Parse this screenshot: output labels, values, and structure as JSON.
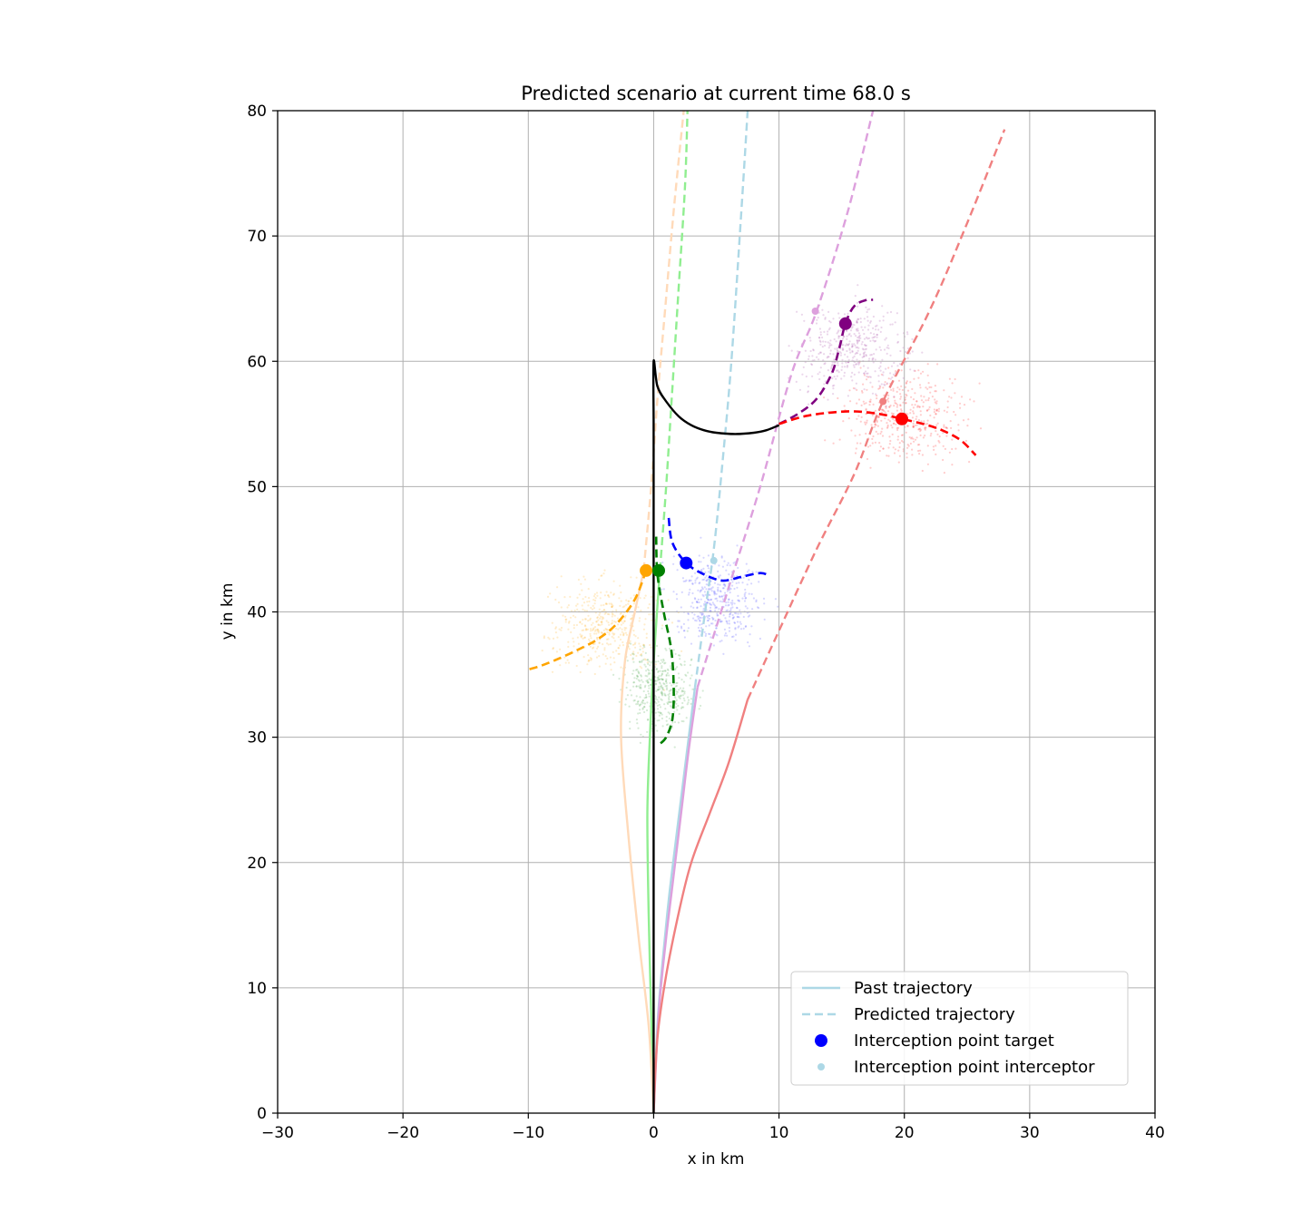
{
  "chart_data": {
    "type": "line",
    "title": "Predicted scenario at current time 68.0 s",
    "xlabel": "x in km",
    "ylabel": "y in km",
    "xlim": [
      -30,
      40
    ],
    "ylim": [
      0,
      80
    ],
    "xticks": [
      -30,
      -20,
      -10,
      0,
      10,
      20,
      30,
      40
    ],
    "yticks": [
      0,
      10,
      20,
      30,
      40,
      50,
      60,
      70,
      80
    ],
    "xtick_labels": [
      "−30",
      "−20",
      "−10",
      "0",
      "10",
      "20",
      "30",
      "40"
    ],
    "ytick_labels": [
      "0",
      "10",
      "20",
      "30",
      "40",
      "50",
      "60",
      "70",
      "80"
    ],
    "grid": true,
    "legend": {
      "position": "lower-right",
      "entries": [
        {
          "label": "Past trajectory",
          "style": "solid-line",
          "color": "#add8e6"
        },
        {
          "label": "Predicted trajectory",
          "style": "dashed-line",
          "color": "#add8e6"
        },
        {
          "label": "Interception point target",
          "style": "large-dot",
          "color": "#0000ff"
        },
        {
          "label": "Interception point interceptor",
          "style": "small-dot",
          "color": "#add8e6"
        }
      ]
    },
    "ownship_path": {
      "name": "Own path",
      "color": "#000000",
      "points": [
        [
          0,
          0
        ],
        [
          0,
          10
        ],
        [
          0,
          20
        ],
        [
          0,
          30
        ],
        [
          0,
          40
        ],
        [
          0,
          47
        ],
        [
          0,
          50
        ],
        [
          0,
          55
        ],
        [
          0,
          60
        ],
        [
          0.3,
          58
        ],
        [
          1,
          56.8
        ],
        [
          2,
          55.6
        ],
        [
          3,
          54.9
        ],
        [
          4,
          54.5
        ],
        [
          5,
          54.3
        ],
        [
          6.5,
          54.2
        ],
        [
          8,
          54.3
        ],
        [
          9,
          54.5
        ],
        [
          10,
          54.9
        ]
      ]
    },
    "series": [
      {
        "name": "light blue interceptor",
        "color": "#add8e6",
        "role": "interceptor",
        "past": [
          [
            0,
            0
          ],
          [
            0.3,
            7
          ],
          [
            0.7,
            12
          ],
          [
            1.2,
            17
          ],
          [
            1.8,
            22
          ],
          [
            2.3,
            26
          ],
          [
            2.8,
            30
          ],
          [
            3.3,
            34
          ]
        ],
        "predicted": [
          [
            3.3,
            34
          ],
          [
            4.1,
            40
          ],
          [
            4.8,
            45
          ],
          [
            5.5,
            52
          ],
          [
            6.2,
            60
          ],
          [
            7.0,
            72
          ],
          [
            7.5,
            80
          ]
        ],
        "interception_point": [
          4.8,
          44.1
        ]
      },
      {
        "name": "plum interceptor",
        "color": "#dda0dd",
        "role": "interceptor",
        "past": [
          [
            0,
            0
          ],
          [
            0.4,
            8
          ],
          [
            1.0,
            14
          ],
          [
            1.6,
            19
          ],
          [
            2.2,
            24
          ],
          [
            2.8,
            29
          ],
          [
            3.5,
            34
          ]
        ],
        "predicted": [
          [
            3.5,
            34
          ],
          [
            6,
            42
          ],
          [
            8.5,
            50
          ],
          [
            11,
            59
          ],
          [
            13,
            64
          ],
          [
            15.5,
            72
          ],
          [
            17.5,
            80
          ]
        ],
        "interception_point": [
          12.9,
          64.0
        ]
      },
      {
        "name": "light coral interceptor",
        "color": "#f08080",
        "role": "interceptor",
        "past": [
          [
            0,
            0
          ],
          [
            0.3,
            6
          ],
          [
            1,
            11
          ],
          [
            2,
            16
          ],
          [
            3,
            20
          ],
          [
            4.5,
            24
          ],
          [
            6,
            28
          ],
          [
            7.5,
            33
          ]
        ],
        "predicted": [
          [
            7.5,
            33
          ],
          [
            10,
            38.5
          ],
          [
            13,
            45
          ],
          [
            16,
            51
          ],
          [
            18.3,
            56.8
          ],
          [
            22,
            64
          ],
          [
            25,
            71
          ],
          [
            28,
            78.5
          ]
        ],
        "interception_point": [
          18.3,
          56.8
        ]
      },
      {
        "name": "light green interceptor",
        "color": "#90ee90",
        "role": "interceptor",
        "past": [
          [
            0,
            0
          ],
          [
            -0.2,
            8
          ],
          [
            -0.4,
            16
          ],
          [
            -0.5,
            24
          ],
          [
            -0.3,
            30
          ],
          [
            0,
            36
          ],
          [
            0.5,
            43.3
          ]
        ],
        "predicted": [
          [
            0.5,
            43.3
          ],
          [
            1.0,
            50
          ],
          [
            1.5,
            58
          ],
          [
            2.0,
            66
          ],
          [
            2.5,
            74
          ],
          [
            2.7,
            80
          ]
        ],
        "interception_point": [
          0.5,
          43.3
        ]
      },
      {
        "name": "peach interceptor",
        "color": "#ffdab9",
        "role": "interceptor",
        "past": [
          [
            0,
            0
          ],
          [
            -0.4,
            7
          ],
          [
            -1.2,
            14
          ],
          [
            -2.0,
            22
          ],
          [
            -2.6,
            30
          ],
          [
            -2.3,
            36
          ],
          [
            -1.5,
            40
          ],
          [
            -0.8,
            43.3
          ]
        ],
        "predicted": [
          [
            -0.8,
            43.3
          ],
          [
            -0.2,
            50
          ],
          [
            0.3,
            57
          ],
          [
            0.9,
            64
          ],
          [
            1.6,
            72
          ],
          [
            2.4,
            80
          ]
        ],
        "interception_point": [
          -0.8,
          43.3
        ]
      },
      {
        "name": "blue target",
        "color": "#0000ff",
        "role": "target",
        "predicted": [
          [
            1.2,
            47.5
          ],
          [
            1.5,
            45.5
          ],
          [
            2.6,
            43.9
          ],
          [
            4,
            43
          ],
          [
            5.5,
            42.5
          ],
          [
            7,
            42.8
          ],
          [
            8.5,
            43.1
          ],
          [
            9.2,
            42.9
          ]
        ],
        "interception_point": [
          2.6,
          43.9
        ]
      },
      {
        "name": "purple target",
        "color": "#800080",
        "role": "target",
        "predicted": [
          [
            10,
            55
          ],
          [
            11.5,
            55.8
          ],
          [
            13,
            57
          ],
          [
            14.2,
            59
          ],
          [
            14.8,
            61
          ],
          [
            15.3,
            63
          ],
          [
            16,
            64.4
          ],
          [
            17,
            64.9
          ],
          [
            17.5,
            64.9
          ]
        ],
        "interception_point": [
          15.3,
          63.0
        ]
      },
      {
        "name": "red target",
        "color": "#ff0000",
        "role": "target",
        "predicted": [
          [
            10,
            55
          ],
          [
            12,
            55.6
          ],
          [
            14,
            55.9
          ],
          [
            16,
            56
          ],
          [
            18,
            55.8
          ],
          [
            19.8,
            55.4
          ],
          [
            21.5,
            55
          ],
          [
            23,
            54.5
          ],
          [
            24.5,
            53.7
          ],
          [
            25.7,
            52.5
          ]
        ],
        "interception_point": [
          19.8,
          55.4
        ]
      },
      {
        "name": "orange target",
        "color": "#ffa500",
        "role": "target",
        "predicted": [
          [
            -0.6,
            43.3
          ],
          [
            -1.5,
            41
          ],
          [
            -3,
            39
          ],
          [
            -4.5,
            37.8
          ],
          [
            -6,
            37
          ],
          [
            -7.5,
            36.3
          ],
          [
            -9,
            35.7
          ],
          [
            -10,
            35.4
          ]
        ],
        "interception_point": [
          -0.6,
          43.3
        ]
      },
      {
        "name": "green target",
        "color": "#008000",
        "role": "target",
        "predicted": [
          [
            0.2,
            46
          ],
          [
            0.3,
            43
          ],
          [
            0.8,
            40
          ],
          [
            1.4,
            37
          ],
          [
            1.6,
            34
          ],
          [
            1.5,
            31.5
          ],
          [
            1.0,
            30
          ],
          [
            0.4,
            29.4
          ]
        ],
        "interception_point": [
          0.4,
          43.3
        ]
      }
    ],
    "particle_clouds": [
      {
        "color": "#ff0000",
        "center": [
          20,
          55.5
        ],
        "spread": [
          7,
          5
        ],
        "alpha": 0.05
      },
      {
        "color": "#800080",
        "center": [
          16,
          61
        ],
        "spread": [
          6,
          5
        ],
        "alpha": 0.04
      },
      {
        "color": "#0000ff",
        "center": [
          5,
          41
        ],
        "spread": [
          5,
          5
        ],
        "alpha": 0.04
      },
      {
        "color": "#ffa500",
        "center": [
          -4,
          39
        ],
        "spread": [
          6,
          5
        ],
        "alpha": 0.05
      },
      {
        "color": "#008000",
        "center": [
          0.5,
          34
        ],
        "spread": [
          4,
          5
        ],
        "alpha": 0.04
      }
    ]
  }
}
